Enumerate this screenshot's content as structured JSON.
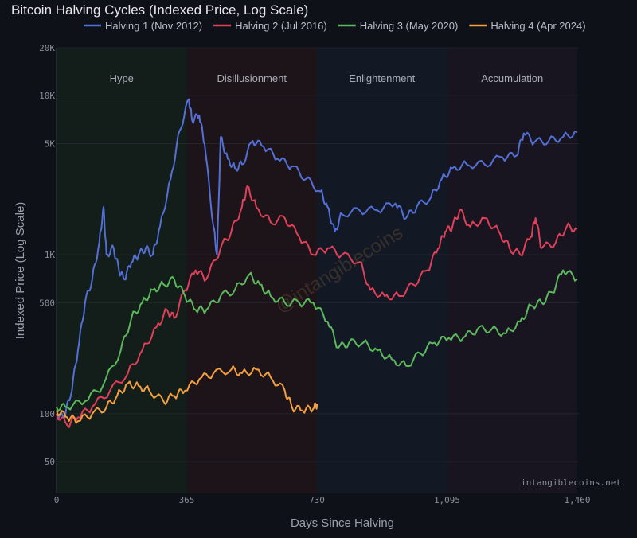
{
  "chart_data": {
    "type": "line",
    "title": "Bitcoin Halving Cycles (Indexed Price, Log Scale)",
    "xlabel": "Days Since Halving",
    "ylabel": "Indexed Price (Log Scale)",
    "y_scale": "log",
    "xlim": [
      0,
      1460
    ],
    "ylim": [
      31.6,
      20000
    ],
    "x_ticks": [
      0,
      365,
      730,
      1095,
      1460
    ],
    "x_tick_labels": [
      "0",
      "365",
      "730",
      "1,095",
      "1,460"
    ],
    "y_ticks": [
      50,
      100,
      500,
      1000,
      5000,
      10000,
      20000
    ],
    "y_tick_labels": [
      "50",
      "100",
      "500",
      "1K",
      "5K",
      "10K",
      "20K"
    ],
    "grid": true,
    "legend_position": "top",
    "background_color": "#0e1118",
    "phases": [
      {
        "label": "Hype",
        "start": 0,
        "end": 365,
        "color": "#131d19"
      },
      {
        "label": "Disillusionment",
        "start": 365,
        "end": 730,
        "color": "#1c1419"
      },
      {
        "label": "Enlightenment",
        "start": 730,
        "end": 1095,
        "color": "#121925"
      },
      {
        "label": "Accumulation",
        "start": 1095,
        "end": 1460,
        "color": "#181521"
      }
    ],
    "watermark": "@intangiblecoins",
    "source": "intangiblecoins.net",
    "series": [
      {
        "name": "Halving 1 (Nov 2012)",
        "color": "#5470d6",
        "x": [
          0,
          20,
          40,
          60,
          80,
          100,
          120,
          132,
          140,
          160,
          175,
          190,
          210,
          230,
          250,
          270,
          290,
          320,
          345,
          371,
          380,
          400,
          415,
          440,
          450,
          460,
          480,
          500,
          520,
          550,
          580,
          620,
          660,
          700,
          740,
          760,
          780,
          800,
          850,
          900,
          950,
          980,
          1010,
          1050,
          1080,
          1110,
          1150,
          1200,
          1250,
          1290,
          1310,
          1340,
          1380,
          1420,
          1460
        ],
        "y": [
          100,
          95,
          130,
          250,
          500,
          700,
          1200,
          2000,
          1000,
          1100,
          800,
          700,
          900,
          1000,
          1100,
          1000,
          1500,
          3000,
          6000,
          9500,
          7000,
          7500,
          5000,
          1500,
          1000,
          5500,
          4000,
          3500,
          3700,
          5200,
          4800,
          4000,
          3600,
          3000,
          2500,
          2000,
          1400,
          1800,
          1900,
          1900,
          2100,
          1700,
          2000,
          2300,
          3000,
          3500,
          3700,
          3700,
          4100,
          4200,
          5800,
          5100,
          5200,
          5500,
          5900
        ]
      },
      {
        "name": "Halving 2 (Jul 2016)",
        "color": "#e0405a",
        "x": [
          0,
          30,
          60,
          100,
          150,
          200,
          240,
          280,
          310,
          330,
          360,
          390,
          420,
          460,
          490,
          520,
          535,
          560,
          600,
          640,
          680,
          720,
          760,
          800,
          850,
          880,
          920,
          960,
          1000,
          1040,
          1070,
          1090,
          1110,
          1130,
          1160,
          1200,
          1240,
          1270,
          1300,
          1330,
          1343,
          1360,
          1400,
          1430,
          1460
        ],
        "y": [
          100,
          85,
          95,
          110,
          140,
          180,
          250,
          350,
          450,
          400,
          600,
          800,
          700,
          1100,
          1400,
          2000,
          2700,
          2000,
          1600,
          1700,
          1300,
          1000,
          1100,
          1000,
          900,
          600,
          550,
          550,
          650,
          800,
          1100,
          1400,
          1500,
          1900,
          1500,
          1700,
          1400,
          1100,
          1000,
          1300,
          1700,
          1100,
          1200,
          1500,
          1450
        ]
      },
      {
        "name": "Halving 3 (May 2020)",
        "color": "#5cb85c",
        "x": [
          0,
          30,
          80,
          130,
          180,
          210,
          240,
          270,
          300,
          330,
          360,
          390,
          420,
          460,
          500,
          540,
          570,
          600,
          640,
          680,
          720,
          760,
          790,
          820,
          860,
          900,
          940,
          980,
          1020,
          1060,
          1100,
          1140,
          1180,
          1220,
          1260,
          1300,
          1330,
          1360,
          1390,
          1420,
          1460
        ],
        "y": [
          110,
          110,
          120,
          150,
          250,
          400,
          500,
          600,
          650,
          700,
          550,
          450,
          450,
          550,
          600,
          750,
          650,
          550,
          500,
          500,
          500,
          380,
          260,
          280,
          280,
          250,
          220,
          200,
          240,
          280,
          300,
          300,
          340,
          340,
          320,
          380,
          480,
          500,
          580,
          800,
          700
        ]
      },
      {
        "name": "Halving 4 (Apr 2024)",
        "color": "#f5a040",
        "x": [
          0,
          30,
          60,
          100,
          140,
          170,
          200,
          230,
          260,
          300,
          330,
          360,
          400,
          440,
          490,
          520,
          560,
          600,
          640,
          660,
          690,
          720,
          731
        ],
        "y": [
          105,
          95,
          90,
          100,
          110,
          130,
          155,
          150,
          140,
          120,
          130,
          140,
          165,
          180,
          190,
          180,
          190,
          170,
          140,
          110,
          105,
          108,
          115
        ]
      }
    ]
  }
}
